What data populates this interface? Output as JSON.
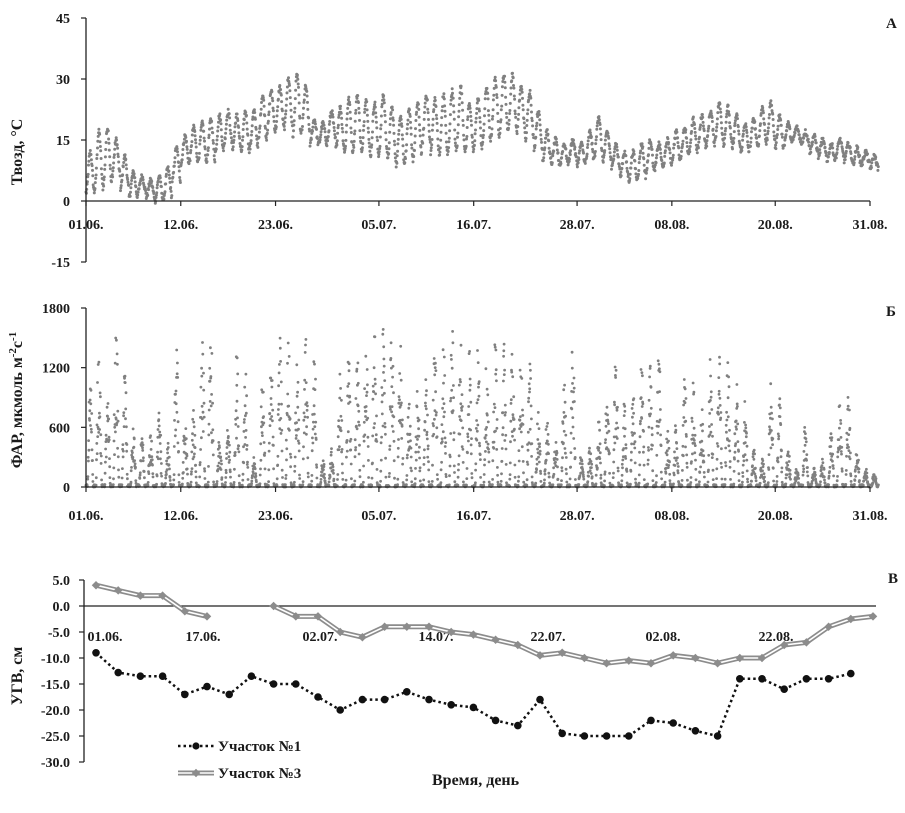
{
  "chart_data": [
    {
      "type": "scatter",
      "panel_label": "А",
      "ylabel": "Твозд, °С",
      "ylim": [
        -15,
        45
      ],
      "yticks": [
        -15,
        0,
        15,
        30,
        45
      ],
      "xlim": [
        0,
        91
      ],
      "xtick_positions": [
        0,
        11,
        22,
        34,
        45,
        57,
        68,
        80,
        91
      ],
      "xtick_labels": [
        "01.06.",
        "12.06.",
        "23.06.",
        "05.07.",
        "16.07.",
        "28.07.",
        "08.08.",
        "20.08.",
        "31.08."
      ],
      "color": "#808080",
      "daily_air_temp_range": [
        [
          2,
          12
        ],
        [
          3,
          17
        ],
        [
          4,
          18
        ],
        [
          6,
          15
        ],
        [
          3,
          11
        ],
        [
          1,
          7
        ],
        [
          2,
          6
        ],
        [
          1,
          5
        ],
        [
          0,
          6
        ],
        [
          1,
          8
        ],
        [
          5,
          13
        ],
        [
          9,
          16
        ],
        [
          10,
          18
        ],
        [
          10,
          19
        ],
        [
          10,
          20
        ],
        [
          12,
          21
        ],
        [
          14,
          22
        ],
        [
          13,
          21
        ],
        [
          12,
          22
        ],
        [
          13,
          22
        ],
        [
          15,
          26
        ],
        [
          17,
          27
        ],
        [
          18,
          28
        ],
        [
          18,
          30
        ],
        [
          16,
          31
        ],
        [
          17,
          28
        ],
        [
          14,
          20
        ],
        [
          14,
          19
        ],
        [
          15,
          22
        ],
        [
          13,
          23
        ],
        [
          12,
          25
        ],
        [
          13,
          26
        ],
        [
          12,
          25
        ],
        [
          11,
          24
        ],
        [
          12,
          26
        ],
        [
          10,
          23
        ],
        [
          9,
          21
        ],
        [
          10,
          22
        ],
        [
          11,
          24
        ],
        [
          14,
          26
        ],
        [
          12,
          25
        ],
        [
          11,
          26
        ],
        [
          12,
          27
        ],
        [
          13,
          28
        ],
        [
          12,
          24
        ],
        [
          13,
          25
        ],
        [
          14,
          28
        ],
        [
          16,
          30
        ],
        [
          17,
          31
        ],
        [
          18,
          31
        ],
        [
          17,
          28
        ],
        [
          15,
          27
        ],
        [
          13,
          22
        ],
        [
          10,
          17
        ],
        [
          9,
          15
        ],
        [
          9,
          14
        ],
        [
          10,
          15
        ],
        [
          9,
          14
        ],
        [
          10,
          17
        ],
        [
          11,
          21
        ],
        [
          10,
          17
        ],
        [
          8,
          14
        ],
        [
          6,
          12
        ],
        [
          5,
          12
        ],
        [
          6,
          14
        ],
        [
          7,
          15
        ],
        [
          8,
          14
        ],
        [
          9,
          15
        ],
        [
          10,
          17
        ],
        [
          11,
          18
        ],
        [
          12,
          20
        ],
        [
          13,
          21
        ],
        [
          14,
          22
        ],
        [
          15,
          24
        ],
        [
          14,
          23
        ],
        [
          13,
          21
        ],
        [
          12,
          19
        ],
        [
          13,
          20
        ],
        [
          14,
          23
        ],
        [
          15,
          24
        ],
        [
          13,
          21
        ],
        [
          14,
          19
        ],
        [
          15,
          18
        ],
        [
          14,
          17
        ],
        [
          12,
          16
        ],
        [
          11,
          15
        ],
        [
          10,
          14
        ],
        [
          11,
          15
        ],
        [
          10,
          14
        ],
        [
          9,
          13
        ],
        [
          9,
          12
        ],
        [
          8,
          11
        ]
      ]
    },
    {
      "type": "scatter",
      "panel_label": "Б",
      "ylabel": "ФАР, мкмоль м-2с-1",
      "ylabel_main": "ФАР, мкмоль м",
      "ylabel_exp1": "-2",
      "ylabel_mid": "с",
      "ylabel_exp2": "-1",
      "ylim": [
        0,
        1800
      ],
      "yticks": [
        0,
        600,
        1200,
        1800
      ],
      "xlim": [
        0,
        91
      ],
      "xtick_positions": [
        0,
        11,
        22,
        34,
        45,
        57,
        68,
        80,
        91
      ],
      "xtick_labels": [
        "01.06.",
        "12.06.",
        "23.06.",
        "05.07.",
        "16.07.",
        "28.07.",
        "08.08.",
        "20.08.",
        "31.08."
      ],
      "color": "#808080",
      "daily_max_par": [
        1150,
        1550,
        900,
        1600,
        1300,
        600,
        500,
        550,
        800,
        450,
        1500,
        700,
        800,
        1550,
        1600,
        500,
        650,
        1400,
        1200,
        300,
        1200,
        1300,
        1600,
        1550,
        1250,
        1550,
        1450,
        300,
        400,
        1200,
        1500,
        1550,
        1550,
        1550,
        1600,
        1650,
        1500,
        900,
        1000,
        1200,
        1550,
        1500,
        1650,
        1550,
        1500,
        1450,
        1300,
        1550,
        1500,
        1450,
        1400,
        1350,
        800,
        700,
        500,
        1100,
        1500,
        400,
        450,
        700,
        1100,
        1400,
        900,
        1000,
        1350,
        1250,
        1450,
        600,
        700,
        1200,
        1100,
        800,
        1350,
        1350,
        1300,
        1100,
        900,
        400,
        300,
        1100,
        1000,
        400,
        200,
        700,
        200,
        300,
        600,
        900,
        950,
        400,
        200,
        150
      ]
    },
    {
      "type": "line",
      "panel_label": "В",
      "ylabel": "УГВ, см",
      "xlabel": "Время, день",
      "ylim": [
        -30,
        5
      ],
      "yticks": [
        5.0,
        0.0,
        -5.0,
        -10.0,
        -15.0,
        -20.0,
        -25.0,
        -30.0
      ],
      "ytick_labels": [
        "5.0",
        "0.0",
        "-5.0",
        "-10.0",
        "-15.0",
        "-20.0",
        "-25.0",
        "-30.0"
      ],
      "xtick_labels": [
        "01.06.",
        "17.06.",
        "02.07.",
        "14.07.",
        "22.07.",
        "02.08.",
        "22.08."
      ],
      "series": [
        {
          "name": "Участок №1",
          "style": "dotted-circle",
          "color": "#111111",
          "values": [
            -9,
            -12.8,
            -13.5,
            -13.5,
            -17,
            -15.5,
            -17,
            -13.5,
            -15,
            -15,
            -17.5,
            -20,
            -18,
            -18,
            -16.5,
            -18,
            -19,
            -19.5,
            -22,
            -23,
            -18,
            -24.5,
            -25,
            -25,
            -25,
            -22,
            -22.5,
            -24,
            -25,
            -14,
            -14,
            -16,
            -14,
            -14,
            -13
          ]
        },
        {
          "name": "Участок №3",
          "style": "double-line-diamond",
          "color": "#8c8c8c",
          "values": [
            4,
            3,
            2,
            2,
            -1,
            -2,
            null,
            null,
            0,
            -2,
            -2,
            -5,
            -6,
            -4,
            -4,
            -4,
            -5,
            -5.5,
            -6.5,
            -7.5,
            -9.5,
            -9,
            -10,
            -11,
            -10.5,
            -11,
            -9.5,
            -10,
            -11,
            -10,
            -10,
            -7.5,
            -7,
            -4,
            -2.5,
            -2
          ]
        }
      ]
    }
  ]
}
